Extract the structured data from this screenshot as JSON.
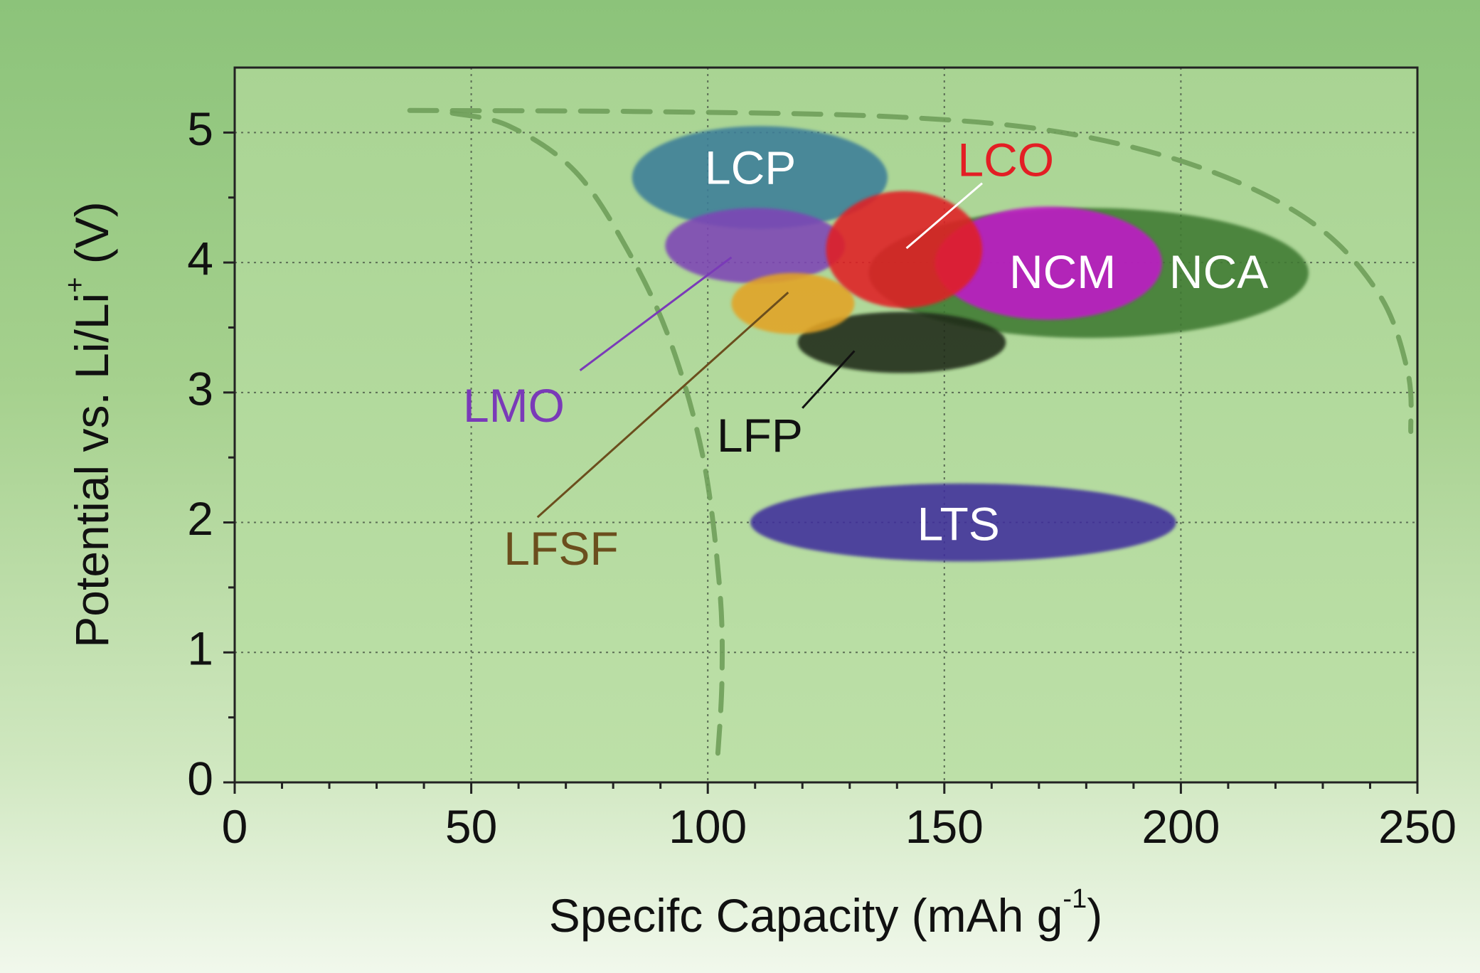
{
  "chart_data": {
    "type": "scatter",
    "xlabel": "Specifc Capacity (mAh g",
    "xlabel_sup": "-1",
    "xlabel_close": ")",
    "ylabel": "Potential vs. Li/Li",
    "ylabel_sup": "+",
    "ylabel_close": " (V)",
    "xlim": [
      0,
      250
    ],
    "ylim": [
      0,
      5.5
    ],
    "xticks": [
      0,
      50,
      100,
      150,
      200,
      250
    ],
    "yticks": [
      0,
      1,
      2,
      3,
      4,
      5
    ],
    "xtick_labels": [
      "0",
      "50",
      "100",
      "150",
      "200",
      "250"
    ],
    "ytick_labels": [
      "0",
      "1",
      "2",
      "3",
      "4",
      "5"
    ],
    "grid": true,
    "regions": [
      {
        "name": "NCA",
        "label": "NCA",
        "x_range": [
          134,
          227
        ],
        "y_range": [
          3.42,
          4.42
        ],
        "fill": "#3f7a33",
        "text": "#ffffff",
        "label_at": [
          208,
          3.9
        ]
      },
      {
        "name": "LFP",
        "label": "LFP",
        "x_range": [
          119,
          163
        ],
        "y_range": [
          3.15,
          3.62
        ],
        "fill": "#1b2b1a",
        "text": "#111111",
        "label_at": [
          111,
          2.64
        ]
      },
      {
        "name": "LCP",
        "label": "LCP",
        "x_range": [
          84,
          138
        ],
        "y_range": [
          4.26,
          5.05
        ],
        "fill": "#3c7d99",
        "text": "#ffffff",
        "label_at": [
          109,
          4.7
        ]
      },
      {
        "name": "LMO",
        "label": "LMO",
        "x_range": [
          91,
          129
        ],
        "y_range": [
          3.84,
          4.42
        ],
        "fill": "#7d46b5",
        "text": "#7a3ab8",
        "label_at": [
          59,
          2.87
        ]
      },
      {
        "name": "LFSF",
        "label": "LFSF",
        "x_range": [
          105,
          131
        ],
        "y_range": [
          3.45,
          3.92
        ],
        "fill": "#e3a325",
        "text": "#6b4e1d",
        "label_at": [
          69,
          1.77
        ]
      },
      {
        "name": "NCM",
        "label": "NCM",
        "x_range": [
          148,
          196
        ],
        "y_range": [
          3.56,
          4.43
        ],
        "fill": "#c017c8",
        "text": "#ffffff",
        "label_at": [
          175,
          3.9
        ]
      },
      {
        "name": "LCO",
        "label": "LCO",
        "x_range": [
          125,
          158
        ],
        "y_range": [
          3.65,
          4.55
        ],
        "fill": "#e01c26",
        "text": "#e31e24",
        "label_at": [
          163,
          4.76
        ]
      },
      {
        "name": "LTS",
        "label": "LTS",
        "x_range": [
          109,
          199
        ],
        "y_range": [
          1.7,
          2.3
        ],
        "fill": "#3d2c9c",
        "text": "#ffffff",
        "label_at": [
          153,
          1.96
        ]
      }
    ],
    "annotations": [
      {
        "name": "LCO",
        "from": [
          158,
          4.61
        ],
        "to": [
          142,
          4.11
        ]
      },
      {
        "name": "LMO",
        "from": [
          73,
          3.17
        ],
        "to": [
          105,
          4.04
        ]
      },
      {
        "name": "LFSF",
        "from": [
          64,
          2.04
        ],
        "to": [
          117,
          3.77
        ]
      },
      {
        "name": "LFP",
        "from": [
          120,
          2.88
        ],
        "to": [
          131,
          3.32
        ]
      }
    ],
    "boundary_curves": [
      {
        "name": "practical-limit-curve",
        "points": [
          [
            46,
            5.15
          ],
          [
            58,
            5.05
          ],
          [
            72,
            4.7
          ],
          [
            83,
            4.1
          ],
          [
            92,
            3.4
          ],
          [
            99,
            2.5
          ],
          [
            102.5,
            1.5
          ],
          [
            103,
            0.8
          ],
          [
            102,
            0.15
          ]
        ]
      },
      {
        "name": "theoretical-limit-curve",
        "points": [
          [
            37,
            5.17
          ],
          [
            90,
            5.16
          ],
          [
            140,
            5.12
          ],
          [
            175,
            5.0
          ],
          [
            205,
            4.72
          ],
          [
            228,
            4.3
          ],
          [
            242,
            3.75
          ],
          [
            248,
            3.15
          ],
          [
            248.6,
            2.7
          ]
        ]
      }
    ]
  }
}
